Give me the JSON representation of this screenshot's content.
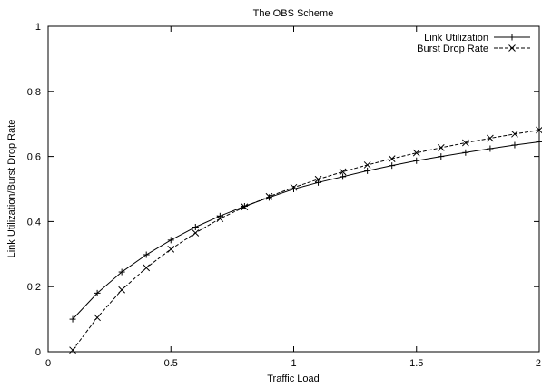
{
  "chart_data": {
    "type": "line",
    "title": "The OBS Scheme",
    "xlabel": "Traffic Load",
    "ylabel": "Link Utilization/Burst Drop Rate",
    "xlim": [
      0,
      2
    ],
    "ylim": [
      0,
      1
    ],
    "x_ticks": [
      {
        "value": 0,
        "label": "0"
      },
      {
        "value": 0.5,
        "label": "0.5"
      },
      {
        "value": 1,
        "label": "1"
      },
      {
        "value": 1.5,
        "label": "1.5"
      },
      {
        "value": 2,
        "label": "2"
      }
    ],
    "y_ticks": [
      {
        "value": 0,
        "label": "0"
      },
      {
        "value": 0.2,
        "label": "0.2"
      },
      {
        "value": 0.4,
        "label": "0.4"
      },
      {
        "value": 0.6,
        "label": "0.6"
      },
      {
        "value": 0.8,
        "label": "0.8"
      },
      {
        "value": 1,
        "label": "1"
      }
    ],
    "grid": false,
    "legend_position": "top-right",
    "x": [
      0.1,
      0.2,
      0.3,
      0.4,
      0.5,
      0.6,
      0.7,
      0.8,
      0.9,
      1.0,
      1.1,
      1.2,
      1.3,
      1.4,
      1.5,
      1.6,
      1.7,
      1.8,
      1.9,
      2.0
    ],
    "series": [
      {
        "name": "Link Utilization",
        "marker": "plus",
        "line_style": "solid",
        "color": "#000000",
        "values": [
          0.1,
          0.18,
          0.245,
          0.298,
          0.343,
          0.383,
          0.417,
          0.447,
          0.474,
          0.5,
          0.52,
          0.538,
          0.556,
          0.572,
          0.587,
          0.6,
          0.612,
          0.624,
          0.635,
          0.645
        ]
      },
      {
        "name": "Burst Drop Rate",
        "marker": "cross",
        "line_style": "dashed",
        "color": "#000000",
        "values": [
          0.005,
          0.105,
          0.19,
          0.258,
          0.315,
          0.365,
          0.409,
          0.445,
          0.477,
          0.505,
          0.53,
          0.553,
          0.574,
          0.593,
          0.611,
          0.627,
          0.642,
          0.656,
          0.669,
          0.681
        ]
      }
    ]
  }
}
